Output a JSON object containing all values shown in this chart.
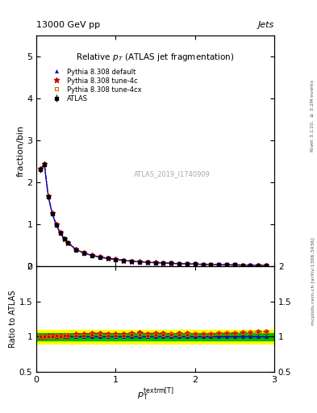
{
  "title": "Relative $p_T$ (ATLAS jet fragmentation)",
  "header_left": "13000 GeV pp",
  "header_right": "Jets",
  "ylabel_main": "fraction/bin",
  "ylabel_ratio": "Ratio to ATLAS",
  "xlabel": "$p_{\\mathrm{T}}^{\\mathrm{textrm[T]}}$",
  "watermark": "ATLAS_2019_I1740909",
  "right_label_top": "Rivet 3.1.10, $\\geq$ 3.2M events",
  "right_label_bot": "mcplots.cern.ch [arXiv:1306.3436]",
  "main_xlim": [
    0,
    3.0
  ],
  "main_ylim": [
    0,
    5.5
  ],
  "ratio_xlim": [
    0,
    3.0
  ],
  "ratio_ylim": [
    0.5,
    2.0
  ],
  "x_data": [
    0.05,
    0.1,
    0.15,
    0.2,
    0.25,
    0.3,
    0.35,
    0.4,
    0.5,
    0.6,
    0.7,
    0.8,
    0.9,
    1.0,
    1.1,
    1.2,
    1.3,
    1.4,
    1.5,
    1.6,
    1.7,
    1.8,
    1.9,
    2.0,
    2.1,
    2.2,
    2.3,
    2.4,
    2.5,
    2.6,
    2.7,
    2.8,
    2.9
  ],
  "atlas_y": [
    2.3,
    2.42,
    1.65,
    1.25,
    0.98,
    0.8,
    0.65,
    0.56,
    0.4,
    0.32,
    0.26,
    0.22,
    0.19,
    0.165,
    0.145,
    0.125,
    0.11,
    0.1,
    0.09,
    0.082,
    0.075,
    0.068,
    0.062,
    0.057,
    0.052,
    0.048,
    0.044,
    0.04,
    0.037,
    0.034,
    0.031,
    0.029,
    0.027
  ],
  "default_y": [
    2.3,
    2.42,
    1.65,
    1.25,
    0.98,
    0.8,
    0.65,
    0.56,
    0.4,
    0.32,
    0.26,
    0.22,
    0.19,
    0.165,
    0.145,
    0.125,
    0.11,
    0.1,
    0.09,
    0.082,
    0.075,
    0.068,
    0.062,
    0.057,
    0.052,
    0.048,
    0.044,
    0.04,
    0.037,
    0.034,
    0.031,
    0.029,
    0.027
  ],
  "tune4c_y": [
    2.32,
    2.44,
    1.67,
    1.27,
    1.0,
    0.81,
    0.66,
    0.57,
    0.415,
    0.332,
    0.272,
    0.232,
    0.198,
    0.172,
    0.151,
    0.131,
    0.117,
    0.104,
    0.094,
    0.086,
    0.078,
    0.071,
    0.065,
    0.059,
    0.054,
    0.05,
    0.046,
    0.042,
    0.039,
    0.036,
    0.033,
    0.031,
    0.029
  ],
  "tune4cx_y": [
    2.31,
    2.43,
    1.66,
    1.26,
    0.99,
    0.805,
    0.657,
    0.567,
    0.406,
    0.326,
    0.266,
    0.226,
    0.193,
    0.168,
    0.148,
    0.128,
    0.113,
    0.102,
    0.092,
    0.084,
    0.077,
    0.07,
    0.064,
    0.059,
    0.054,
    0.05,
    0.046,
    0.042,
    0.039,
    0.036,
    0.033,
    0.031,
    0.029
  ],
  "atlas_color": "#000000",
  "default_color": "#0000cc",
  "tune4c_color": "#cc0000",
  "tune4cx_color": "#cc6600",
  "band_yellow": "#ffff00",
  "band_green": "#00bb00",
  "bg_color": "#ffffff"
}
